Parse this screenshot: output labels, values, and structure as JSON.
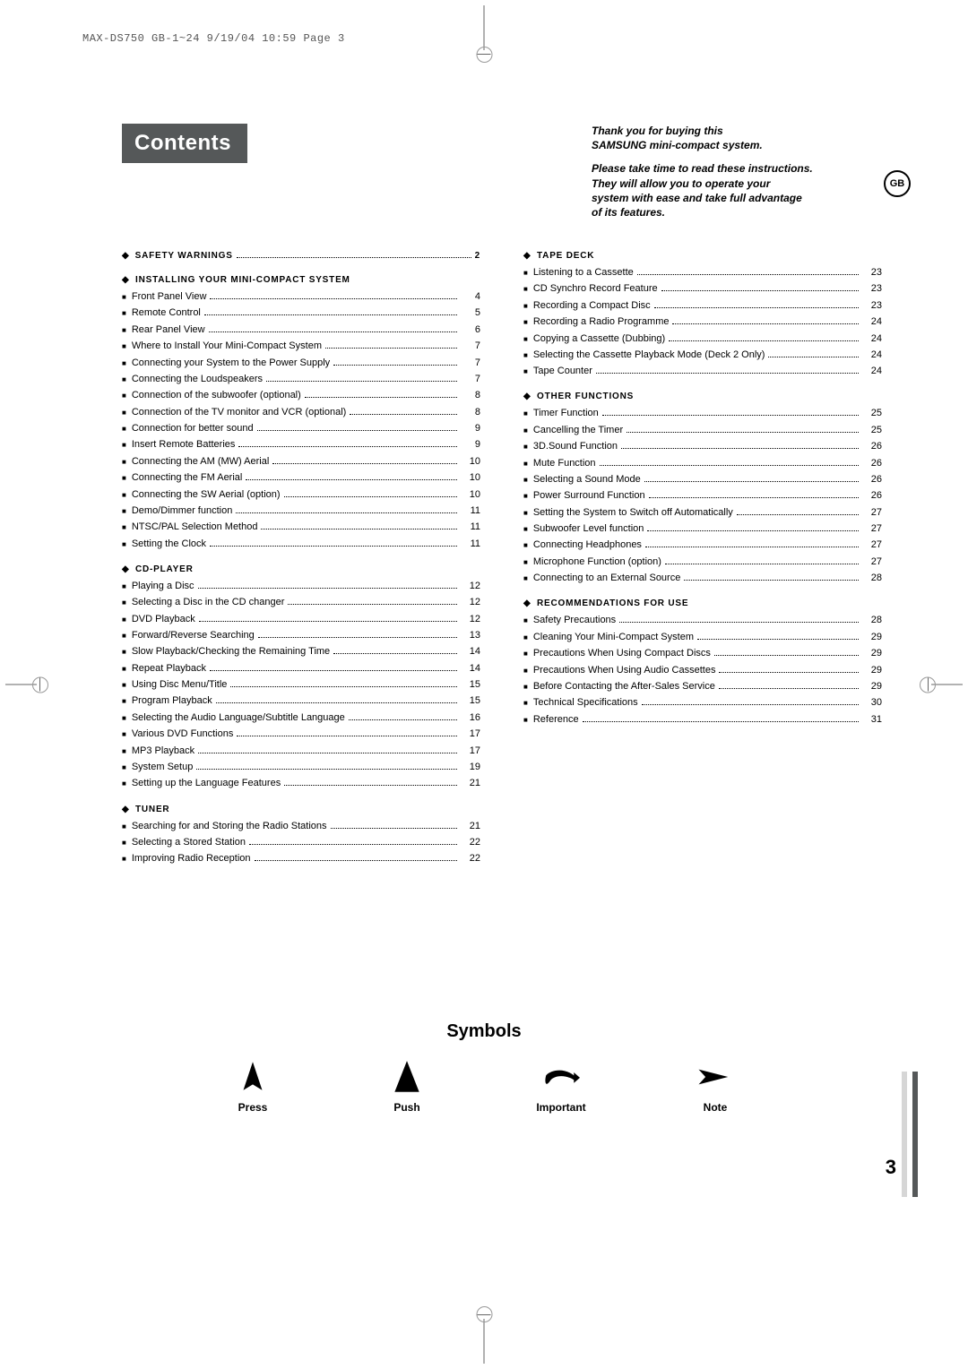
{
  "print_header": "MAX-DS750 GB-1~24  9/19/04 10:59  Page 3",
  "title_bar": "Contents",
  "intro": {
    "line1": "Thank you for buying this",
    "line2": "SAMSUNG mini-compact system.",
    "line3": "Please take time to read these instructions.",
    "line4": "They will allow you to operate your",
    "line5": "system with ease and take full advantage",
    "line6": "of its features."
  },
  "gb_badge": "GB",
  "left_sections": [
    {
      "type": "head_with_page",
      "label": "SAFETY WARNINGS",
      "page": "2"
    },
    {
      "type": "head",
      "label": "INSTALLING YOUR MINI-COMPACT SYSTEM"
    },
    {
      "type": "item",
      "label": "Front Panel View",
      "page": "4"
    },
    {
      "type": "item",
      "label": "Remote Control",
      "page": "5"
    },
    {
      "type": "item",
      "label": "Rear Panel View",
      "page": "6"
    },
    {
      "type": "item",
      "label": "Where to Install Your Mini-Compact System",
      "page": "7"
    },
    {
      "type": "item",
      "label": "Connecting your System to the Power Supply",
      "page": "7"
    },
    {
      "type": "item",
      "label": "Connecting the Loudspeakers",
      "page": "7"
    },
    {
      "type": "item",
      "label": "Connection of the subwoofer (optional)",
      "page": "8"
    },
    {
      "type": "item",
      "label": "Connection of the TV monitor and VCR (optional)",
      "page": "8"
    },
    {
      "type": "item",
      "label": "Connection for better sound",
      "page": "9"
    },
    {
      "type": "item",
      "label": "Insert Remote Batteries",
      "page": "9"
    },
    {
      "type": "item",
      "label": "Connecting the AM (MW) Aerial",
      "page": "10"
    },
    {
      "type": "item",
      "label": "Connecting the FM Aerial",
      "page": "10"
    },
    {
      "type": "item",
      "label": "Connecting the SW Aerial (option)",
      "page": "10"
    },
    {
      "type": "item",
      "label": "Demo/Dimmer function",
      "page": "11"
    },
    {
      "type": "item",
      "label": "NTSC/PAL Selection Method",
      "page": "11"
    },
    {
      "type": "item",
      "label": "Setting the Clock",
      "page": "11"
    },
    {
      "type": "head",
      "label": "CD-PLAYER"
    },
    {
      "type": "item",
      "label": "Playing a Disc",
      "page": "12"
    },
    {
      "type": "item",
      "label": "Selecting a Disc in the CD changer",
      "page": "12"
    },
    {
      "type": "item",
      "label": "DVD Playback",
      "page": "12"
    },
    {
      "type": "item",
      "label": "Forward/Reverse Searching",
      "page": "13"
    },
    {
      "type": "item",
      "label": "Slow Playback/Checking the Remaining Time",
      "page": "14"
    },
    {
      "type": "item",
      "label": "Repeat Playback",
      "page": "14"
    },
    {
      "type": "item",
      "label": "Using Disc Menu/Title",
      "page": "15"
    },
    {
      "type": "item",
      "label": "Program Playback",
      "page": "15"
    },
    {
      "type": "item",
      "label": "Selecting the Audio Language/Subtitle Language",
      "page": "16"
    },
    {
      "type": "item",
      "label": "Various DVD Functions",
      "page": "17"
    },
    {
      "type": "item",
      "label": "MP3 Playback",
      "page": "17"
    },
    {
      "type": "item",
      "label": "System Setup",
      "page": "19"
    },
    {
      "type": "item",
      "label": "Setting up the Language Features",
      "page": "21"
    },
    {
      "type": "head",
      "label": "TUNER"
    },
    {
      "type": "item",
      "label": "Searching for and Storing the Radio Stations",
      "page": "21"
    },
    {
      "type": "item",
      "label": "Selecting a Stored Station",
      "page": "22"
    },
    {
      "type": "item",
      "label": "Improving Radio Reception",
      "page": "22"
    }
  ],
  "right_sections": [
    {
      "type": "head",
      "label": "TAPE DECK"
    },
    {
      "type": "item",
      "label": "Listening to a Cassette",
      "page": "23"
    },
    {
      "type": "item",
      "label": "CD Synchro Record Feature",
      "page": "23"
    },
    {
      "type": "item",
      "label": "Recording a Compact Disc",
      "page": "23"
    },
    {
      "type": "item",
      "label": "Recording a Radio Programme",
      "page": "24"
    },
    {
      "type": "item",
      "label": "Copying a Cassette (Dubbing)",
      "page": "24"
    },
    {
      "type": "item",
      "label": "Selecting the Cassette Playback Mode (Deck 2 Only)",
      "page": "24"
    },
    {
      "type": "item",
      "label": "Tape Counter",
      "page": "24"
    },
    {
      "type": "head",
      "label": "OTHER FUNCTIONS"
    },
    {
      "type": "item",
      "label": "Timer Function",
      "page": "25"
    },
    {
      "type": "item",
      "label": "Cancelling the Timer",
      "page": "25"
    },
    {
      "type": "item",
      "label": "3D.Sound Function",
      "page": "26"
    },
    {
      "type": "item",
      "label": "Mute Function",
      "page": "26"
    },
    {
      "type": "item",
      "label": "Selecting a Sound Mode",
      "page": "26"
    },
    {
      "type": "item",
      "label": "Power Surround Function",
      "page": "26"
    },
    {
      "type": "item",
      "label": "Setting the System to Switch off Automatically",
      "page": "27"
    },
    {
      "type": "item",
      "label": "Subwoofer Level function",
      "page": "27"
    },
    {
      "type": "item",
      "label": "Connecting Headphones",
      "page": "27"
    },
    {
      "type": "item",
      "label": "Microphone Function (option)",
      "page": "27"
    },
    {
      "type": "item",
      "label": "Connecting to an External Source",
      "page": "28"
    },
    {
      "type": "head",
      "label": "RECOMMENDATIONS FOR USE"
    },
    {
      "type": "item",
      "label": "Safety Precautions",
      "page": "28"
    },
    {
      "type": "item",
      "label": "Cleaning Your Mini-Compact System",
      "page": "29"
    },
    {
      "type": "item",
      "label": "Precautions When Using Compact Discs",
      "page": "29"
    },
    {
      "type": "item",
      "label": "Precautions When Using Audio Cassettes",
      "page": "29"
    },
    {
      "type": "item",
      "label": "Before Contacting the After-Sales Service",
      "page": "29"
    },
    {
      "type": "item",
      "label": "Technical Specifications",
      "page": "30"
    },
    {
      "type": "item",
      "label": "Reference",
      "page": "31"
    }
  ],
  "symbols": {
    "title": "Symbols",
    "items": [
      {
        "label": "Press"
      },
      {
        "label": "Push"
      },
      {
        "label": "Important"
      },
      {
        "label": "Note"
      }
    ]
  },
  "page_number": "3",
  "side_bar_colors": [
    "#d6d6d6",
    "#555859"
  ]
}
